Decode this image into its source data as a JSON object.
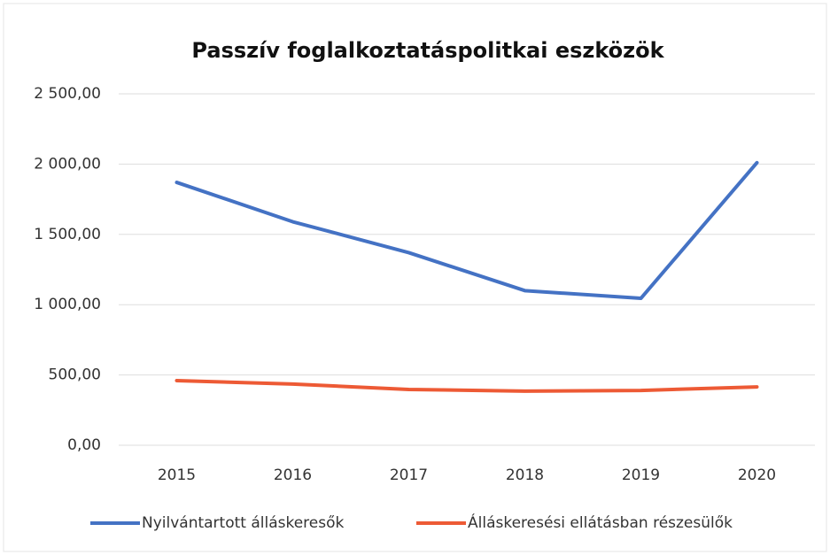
{
  "chart_data": {
    "type": "line",
    "title": "Passzív foglalkoztatáspolitkai eszközök",
    "categories": [
      "2015",
      "2016",
      "2017",
      "2018",
      "2019",
      "2020"
    ],
    "series": [
      {
        "name": "Nyilvántartott álláskeresők",
        "color": "#4472c4",
        "values": [
          1870,
          1590,
          1370,
          1100,
          1045,
          2010
        ]
      },
      {
        "name": "Álláskeresési ellátásban részesülők",
        "color": "#ed5a35",
        "values": [
          460,
          435,
          397,
          385,
          390,
          415
        ]
      }
    ],
    "ylim": [
      0,
      2500
    ],
    "yticks": [
      {
        "value": 0,
        "label": "0,00"
      },
      {
        "value": 500,
        "label": "500,00"
      },
      {
        "value": 1000,
        "label": "1 000,00"
      },
      {
        "value": 1500,
        "label": "1 500,00"
      },
      {
        "value": 2000,
        "label": "2 000,00"
      },
      {
        "value": 2500,
        "label": "2 500,00"
      }
    ],
    "grid": true,
    "legend": "bottom"
  }
}
